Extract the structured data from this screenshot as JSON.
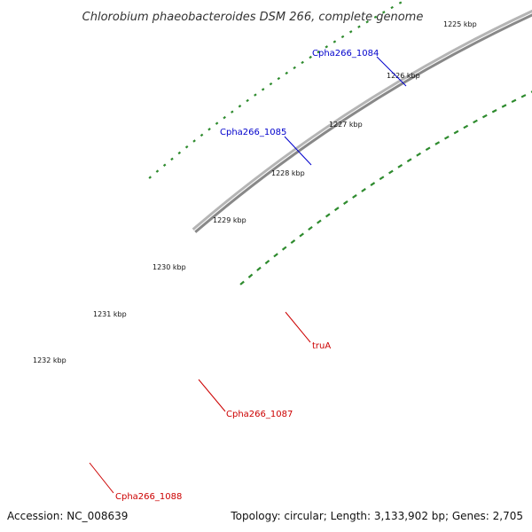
{
  "title": "Chlorobium phaeobacteroides DSM 266, complete genome",
  "footer": {
    "accession": "Accession: NC_008639",
    "summary": "Topology: circular; Length: 3,133,902 bp; Genes: 2,705"
  },
  "ticks": [
    "1225 kbp",
    "1226 kbp",
    "1227 kbp",
    "1228 kbp",
    "1229 kbp",
    "1230 kbp",
    "1231 kbp",
    "1232 kbp"
  ],
  "gene_labels": [
    {
      "text": "Cpha266_1084",
      "color": "#0000cc"
    },
    {
      "text": "Cpha266_1085",
      "color": "#0000cc"
    },
    {
      "text": "truA",
      "color": "#cc0000"
    },
    {
      "text": "Cpha266_1087",
      "color": "#cc0000"
    },
    {
      "text": "Cpha266_1088",
      "color": "#cc0000"
    }
  ],
  "colors": {
    "backbone": "#888888",
    "cds_forward": "#0000ff",
    "cds_reverse": "#ff0000",
    "gc_skew": "#2e8b2e",
    "cog_cyan": "#22c9c9",
    "cog_pink": "#f08080",
    "cog_olive": "#6b8e23",
    "cog_slate": "#483d8b"
  }
}
